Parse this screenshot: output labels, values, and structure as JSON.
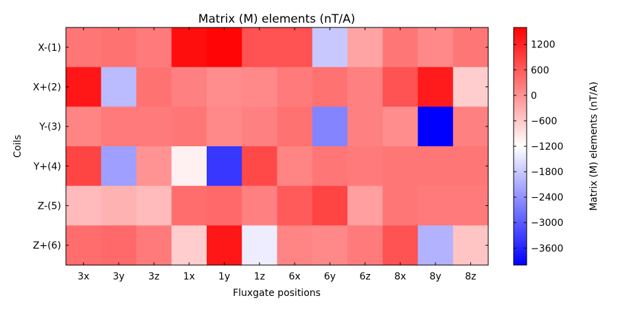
{
  "chart_data": {
    "type": "heatmap",
    "title": "Matrix (M) elements  (nT/A)",
    "xlabel": "Fluxgate positions",
    "ylabel": "Coils",
    "x_categories": [
      "3x",
      "3y",
      "3z",
      "1x",
      "1y",
      "1z",
      "6x",
      "6y",
      "6z",
      "8x",
      "8y",
      "8z"
    ],
    "y_categories": [
      "X-(1)",
      "X+(2)",
      "Y-(3)",
      "Y+(4)",
      "Z-(5)",
      "Z+(6)"
    ],
    "values": [
      [
        300,
        350,
        250,
        1450,
        1550,
        700,
        700,
        -1800,
        -200,
        300,
        100,
        300
      ],
      [
        1350,
        -1950,
        350,
        200,
        50,
        100,
        250,
        350,
        200,
        700,
        1300,
        -650
      ],
      [
        150,
        250,
        250,
        300,
        100,
        200,
        350,
        -2550,
        200,
        50,
        -4000,
        200
      ],
      [
        850,
        -2250,
        0,
        -1050,
        -3400,
        800,
        150,
        300,
        250,
        300,
        300,
        300
      ],
      [
        -450,
        -350,
        -450,
        400,
        450,
        200,
        600,
        850,
        -150,
        300,
        250,
        250
      ],
      [
        400,
        450,
        250,
        -650,
        1350,
        -1400,
        150,
        100,
        250,
        700,
        -2050,
        -550
      ]
    ],
    "colorbar": {
      "label": "Matrix (M) elements  (nT/A)",
      "range": [
        -4000,
        1600
      ],
      "ticks": [
        1200,
        600,
        0,
        -600,
        -1200,
        -1800,
        -2400,
        -3000,
        -3600
      ],
      "colormap": "bwr",
      "center": -1200
    },
    "colors": {
      "low": "#0000ff",
      "mid": "#ffffff",
      "high": "#ff0000"
    }
  }
}
